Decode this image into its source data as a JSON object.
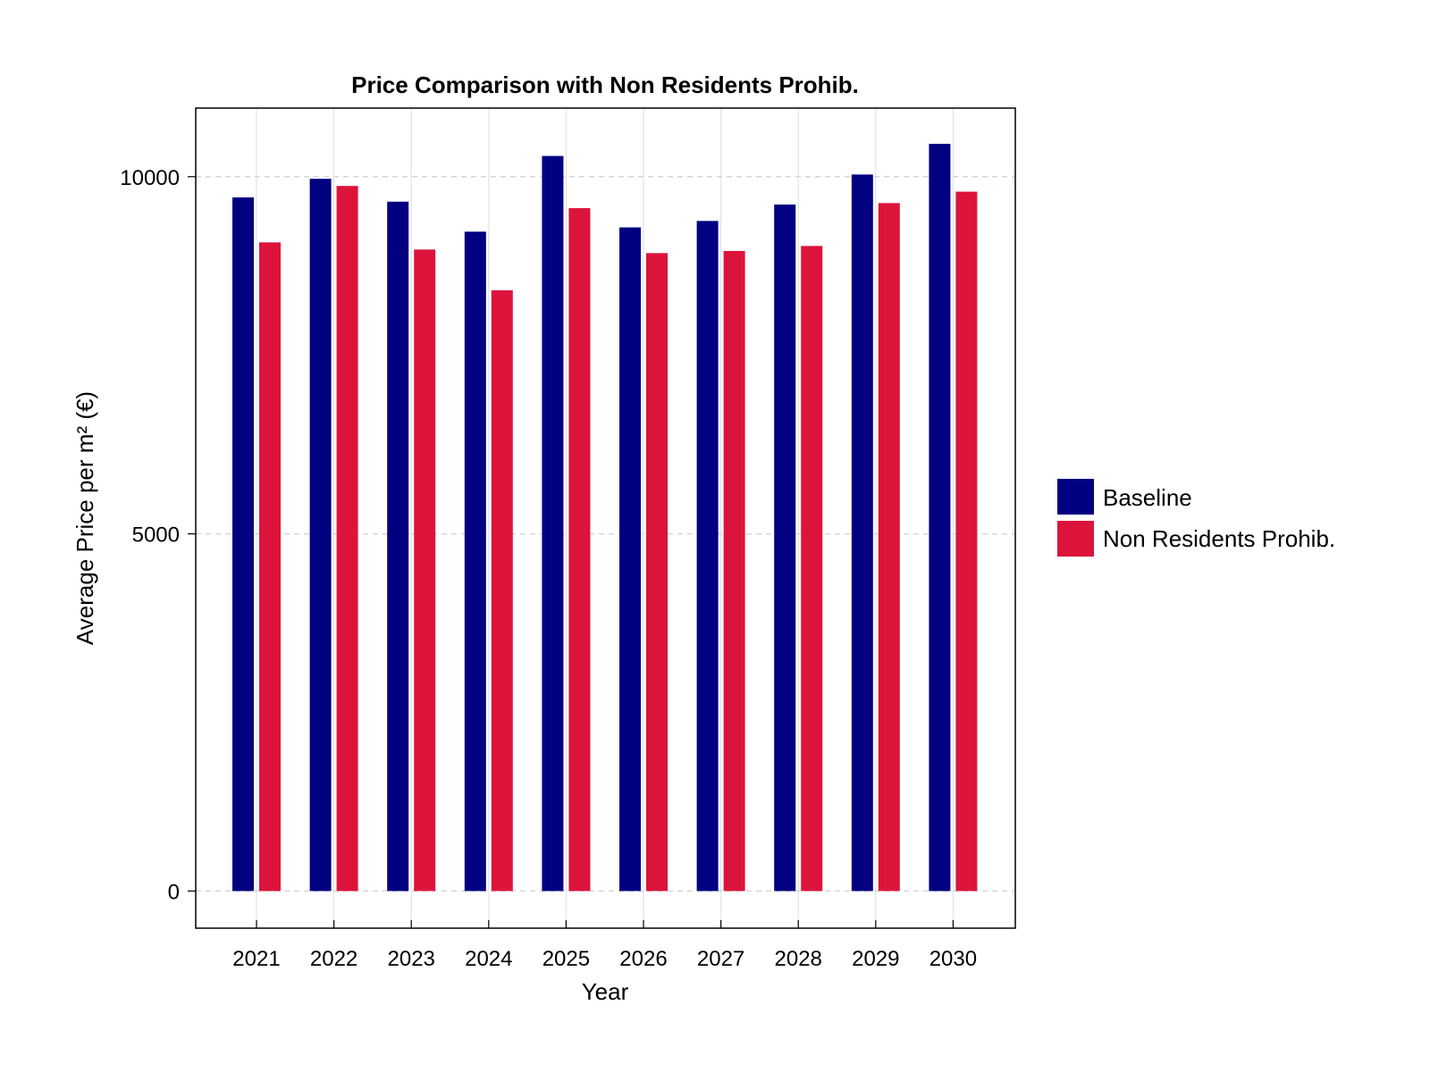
{
  "chart_data": {
    "type": "bar",
    "title": "Price Comparison with Non Residents Prohib.",
    "xlabel": "Year",
    "ylabel": "Average Price per m² (€)",
    "categories": [
      "2021",
      "2022",
      "2023",
      "2024",
      "2025",
      "2026",
      "2027",
      "2028",
      "2029",
      "2030"
    ],
    "series": [
      {
        "name": "Baseline",
        "color": "#000080",
        "values": [
          9710,
          9970,
          9650,
          9230,
          10290,
          9290,
          9380,
          9610,
          10030,
          10460
        ]
      },
      {
        "name": "Non Residents Prohib.",
        "color": "#DC143C",
        "values": [
          9080,
          9870,
          8980,
          8410,
          9560,
          8930,
          8960,
          9030,
          9630,
          9790
        ]
      }
    ],
    "yticks": [
      0,
      5000,
      10000
    ],
    "ylim": [
      -520,
      10960
    ],
    "grid": true,
    "legend_position": "right"
  }
}
